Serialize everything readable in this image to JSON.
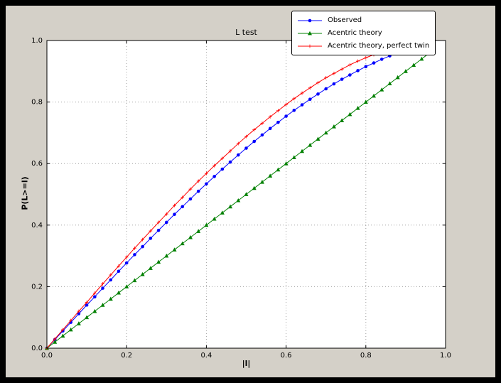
{
  "window": {
    "outer_background": "#000000",
    "figure_background": "#d4d0c8"
  },
  "chart_data": {
    "type": "line",
    "title": "L test",
    "xlabel": "|l|",
    "ylabel": "P(L>=l)",
    "xlim": [
      0.0,
      1.0
    ],
    "ylim": [
      0.0,
      1.0
    ],
    "xticks": [
      0.0,
      0.2,
      0.4,
      0.6,
      0.8,
      1.0
    ],
    "yticks": [
      0.0,
      0.2,
      0.4,
      0.6,
      0.8,
      1.0
    ],
    "xtick_labels": [
      "0.0",
      "0.2",
      "0.4",
      "0.6",
      "0.8",
      "1.0"
    ],
    "ytick_labels": [
      "0.0",
      "0.2",
      "0.4",
      "0.6",
      "0.8",
      "1.0"
    ],
    "grid": true,
    "grid_color": "#a0a0a0",
    "plot_background": "#ffffff",
    "legend_position": "upper right",
    "series": [
      {
        "id": "observed",
        "label": "Observed",
        "color": "#0000ff",
        "marker": "circle",
        "x": [
          0,
          0.02,
          0.04,
          0.06,
          0.08,
          0.1,
          0.12,
          0.14,
          0.16,
          0.18,
          0.2,
          0.22,
          0.24,
          0.26,
          0.28,
          0.3,
          0.32,
          0.34,
          0.36,
          0.38,
          0.4,
          0.42,
          0.44,
          0.46,
          0.48,
          0.5,
          0.52,
          0.54,
          0.56,
          0.58,
          0.6,
          0.62,
          0.64,
          0.66,
          0.68,
          0.7,
          0.72,
          0.74,
          0.76,
          0.78,
          0.8,
          0.82,
          0.84,
          0.86
        ],
        "y": [
          0,
          0.028,
          0.056,
          0.084,
          0.112,
          0.14,
          0.167,
          0.195,
          0.222,
          0.25,
          0.277,
          0.304,
          0.33,
          0.357,
          0.383,
          0.409,
          0.435,
          0.46,
          0.485,
          0.51,
          0.534,
          0.558,
          0.582,
          0.605,
          0.628,
          0.65,
          0.672,
          0.693,
          0.714,
          0.734,
          0.754,
          0.773,
          0.791,
          0.809,
          0.826,
          0.843,
          0.859,
          0.874,
          0.888,
          0.902,
          0.915,
          0.927,
          0.939,
          0.95
        ]
      },
      {
        "id": "acentric-theory",
        "label": "Acentric theory",
        "color": "#008000",
        "marker": "triangle",
        "x": [
          0,
          0.02,
          0.04,
          0.06,
          0.08,
          0.1,
          0.12,
          0.14,
          0.16,
          0.18,
          0.2,
          0.22,
          0.24,
          0.26,
          0.28,
          0.3,
          0.32,
          0.34,
          0.36,
          0.38,
          0.4,
          0.42,
          0.44,
          0.46,
          0.48,
          0.5,
          0.52,
          0.54,
          0.56,
          0.58,
          0.6,
          0.62,
          0.64,
          0.66,
          0.68,
          0.7,
          0.72,
          0.74,
          0.76,
          0.78,
          0.8,
          0.82,
          0.84,
          0.86,
          0.88,
          0.9,
          0.92,
          0.94,
          0.96
        ],
        "y": [
          0,
          0.02,
          0.04,
          0.06,
          0.08,
          0.1,
          0.12,
          0.14,
          0.16,
          0.18,
          0.2,
          0.22,
          0.24,
          0.26,
          0.28,
          0.3,
          0.32,
          0.34,
          0.36,
          0.38,
          0.4,
          0.42,
          0.44,
          0.46,
          0.48,
          0.5,
          0.52,
          0.54,
          0.56,
          0.58,
          0.6,
          0.62,
          0.64,
          0.66,
          0.68,
          0.7,
          0.72,
          0.74,
          0.76,
          0.78,
          0.8,
          0.82,
          0.84,
          0.86,
          0.88,
          0.9,
          0.92,
          0.94,
          0.96
        ]
      },
      {
        "id": "acentric-theory-perfect-twin",
        "label": "Acentric theory, perfect twin",
        "color": "#ff0000",
        "marker": "plus",
        "x": [
          0,
          0.02,
          0.04,
          0.06,
          0.08,
          0.1,
          0.12,
          0.14,
          0.16,
          0.18,
          0.2,
          0.22,
          0.24,
          0.26,
          0.28,
          0.3,
          0.32,
          0.34,
          0.36,
          0.38,
          0.4,
          0.42,
          0.44,
          0.46,
          0.48,
          0.5,
          0.52,
          0.54,
          0.56,
          0.58,
          0.6,
          0.62,
          0.64,
          0.66,
          0.68,
          0.7,
          0.72,
          0.74,
          0.76,
          0.78,
          0.8,
          0.82,
          0.84
        ],
        "y": [
          0,
          0.03,
          0.06,
          0.09,
          0.12,
          0.149,
          0.179,
          0.209,
          0.238,
          0.267,
          0.296,
          0.325,
          0.353,
          0.381,
          0.409,
          0.436,
          0.464,
          0.49,
          0.517,
          0.543,
          0.568,
          0.593,
          0.617,
          0.641,
          0.665,
          0.688,
          0.71,
          0.731,
          0.752,
          0.772,
          0.792,
          0.811,
          0.829,
          0.846,
          0.863,
          0.879,
          0.893,
          0.907,
          0.921,
          0.933,
          0.944,
          0.954,
          0.964
        ]
      }
    ]
  }
}
